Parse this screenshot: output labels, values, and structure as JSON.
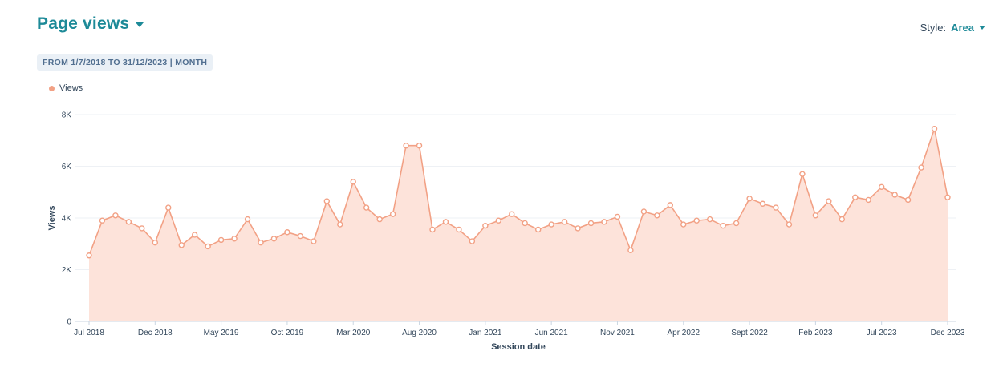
{
  "header": {
    "title": "Page views"
  },
  "style_switch": {
    "label": "Style:",
    "value": "Area"
  },
  "range_badge": "FROM 1/7/2018 TO 31/12/2023 | MONTH",
  "colors": {
    "accent": "#1d8a98",
    "series_stroke": "#f2a185",
    "series_fill": "#fde3da"
  },
  "chart_data": {
    "type": "area",
    "xlabel": "Session date",
    "ylabel": "Views",
    "ylim": [
      0,
      8000
    ],
    "y_ticks": [
      0,
      2000,
      4000,
      6000,
      8000
    ],
    "y_tick_labels": [
      "0",
      "2K",
      "4K",
      "6K",
      "8K"
    ],
    "x_tick_labels": [
      "Jul 2018",
      "Dec 2018",
      "May 2019",
      "Oct 2019",
      "Mar 2020",
      "Aug 2020",
      "Jan 2021",
      "Jun 2021",
      "Nov 2021",
      "Apr 2022",
      "Sept 2022",
      "Feb 2023",
      "Jul 2023",
      "Dec 2023"
    ],
    "grid": true,
    "legend_position": "top-left",
    "series": [
      {
        "name": "Views",
        "values": [
          2550,
          3900,
          4100,
          3850,
          3600,
          3050,
          4400,
          2950,
          3350,
          2900,
          3150,
          3200,
          3950,
          3050,
          3200,
          3450,
          3300,
          3100,
          4650,
          3750,
          5400,
          4400,
          3950,
          4150,
          6800,
          6800,
          3550,
          3850,
          3550,
          3100,
          3700,
          3900,
          4150,
          3800,
          3550,
          3750,
          3850,
          3600,
          3800,
          3850,
          4050,
          2750,
          4250,
          4100,
          4500,
          3750,
          3900,
          3950,
          3700,
          3800,
          4750,
          4550,
          4400,
          3750,
          5700,
          4100,
          4650,
          3950,
          4800,
          4700,
          5200,
          4900,
          4700,
          5950,
          7450,
          4800
        ]
      }
    ]
  }
}
